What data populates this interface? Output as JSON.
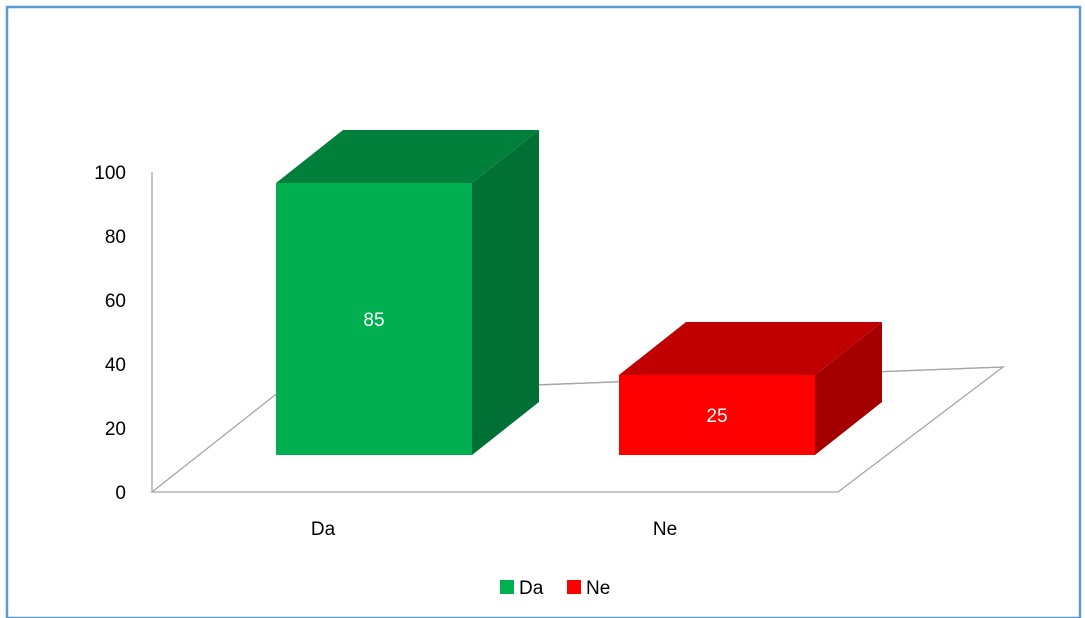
{
  "chart_data": {
    "type": "bar",
    "three_d": true,
    "categories": [
      "Da",
      "Ne"
    ],
    "values": [
      85,
      25
    ],
    "data_labels": [
      "85",
      "25"
    ],
    "colors": [
      "#00B050",
      "#FF0000"
    ],
    "side_colors": [
      "#007035",
      "#A50000"
    ],
    "top_colors": [
      "#00803A",
      "#C00000"
    ],
    "ylim": [
      0,
      100
    ],
    "yticks": [
      "0",
      "20",
      "40",
      "60",
      "80",
      "100"
    ],
    "legend": {
      "position": "bottom",
      "entries": [
        {
          "label": "Da",
          "color": "#00B050"
        },
        {
          "label": "Ne",
          "color": "#FF0000"
        }
      ]
    },
    "grid": false,
    "border_color": "#5B9BD5"
  }
}
